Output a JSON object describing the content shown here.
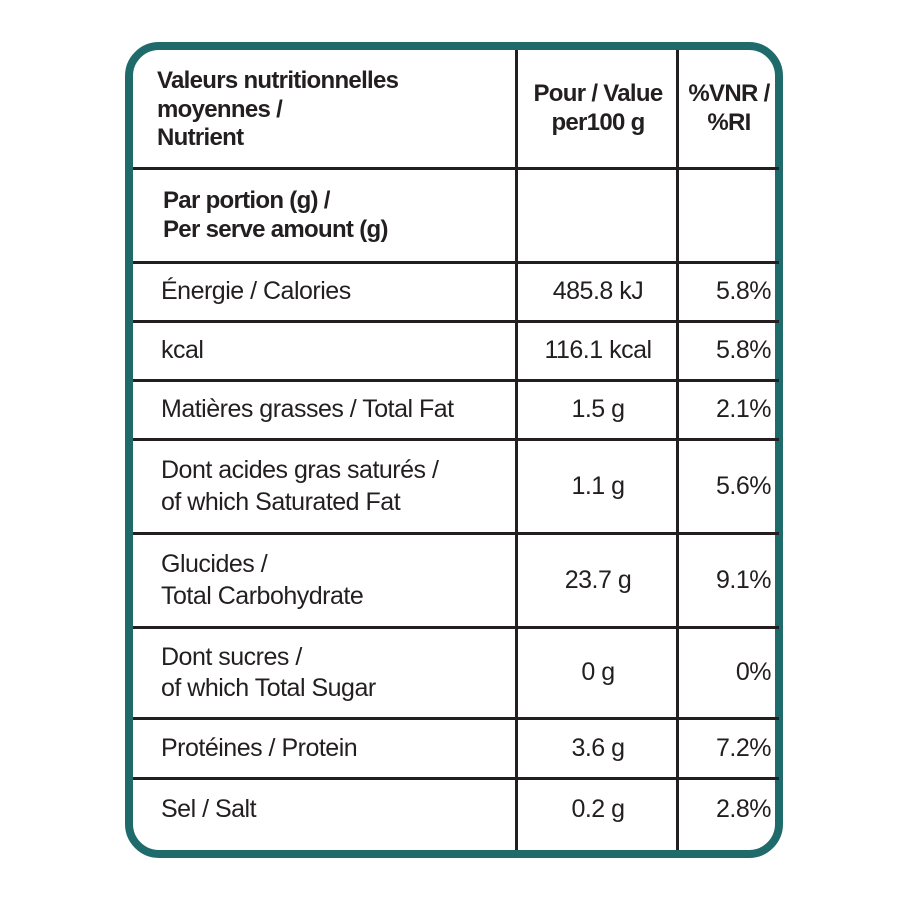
{
  "header": {
    "col1": [
      "Valeurs nutritionnelles",
      "moyennes /",
      "Nutrient"
    ],
    "col2": [
      "Pour / Value",
      "per100 g"
    ],
    "col3": [
      "%VNR /",
      "%RI"
    ]
  },
  "serving": [
    "Par portion (g) /",
    "Per serve amount (g)"
  ],
  "rows": [
    {
      "name": [
        "Énergie / Calories"
      ],
      "value": "485.8 kJ",
      "pct": "5.8%"
    },
    {
      "name": [
        "kcal"
      ],
      "value": "116.1 kcal",
      "pct": "5.8%"
    },
    {
      "name": [
        "Matières grasses / Total Fat"
      ],
      "value": "1.5 g",
      "pct": "2.1%"
    },
    {
      "name": [
        "Dont acides gras saturés /",
        "of which Saturated Fat"
      ],
      "value": "1.1 g",
      "pct": "5.6%"
    },
    {
      "name": [
        "Glucides /",
        "Total Carbohydrate"
      ],
      "value": "23.7 g",
      "pct": "9.1%"
    },
    {
      "name": [
        "Dont sucres /",
        "of which Total Sugar"
      ],
      "value": "0 g",
      "pct": "0%"
    },
    {
      "name": [
        "Protéines / Protein"
      ],
      "value": "3.6 g",
      "pct": "7.2%"
    },
    {
      "name": [
        "Sel / Salt"
      ],
      "value": "0.2 g",
      "pct": "2.8%"
    }
  ],
  "colors": {
    "border": "#1f6b6c",
    "text": "#231f20"
  }
}
